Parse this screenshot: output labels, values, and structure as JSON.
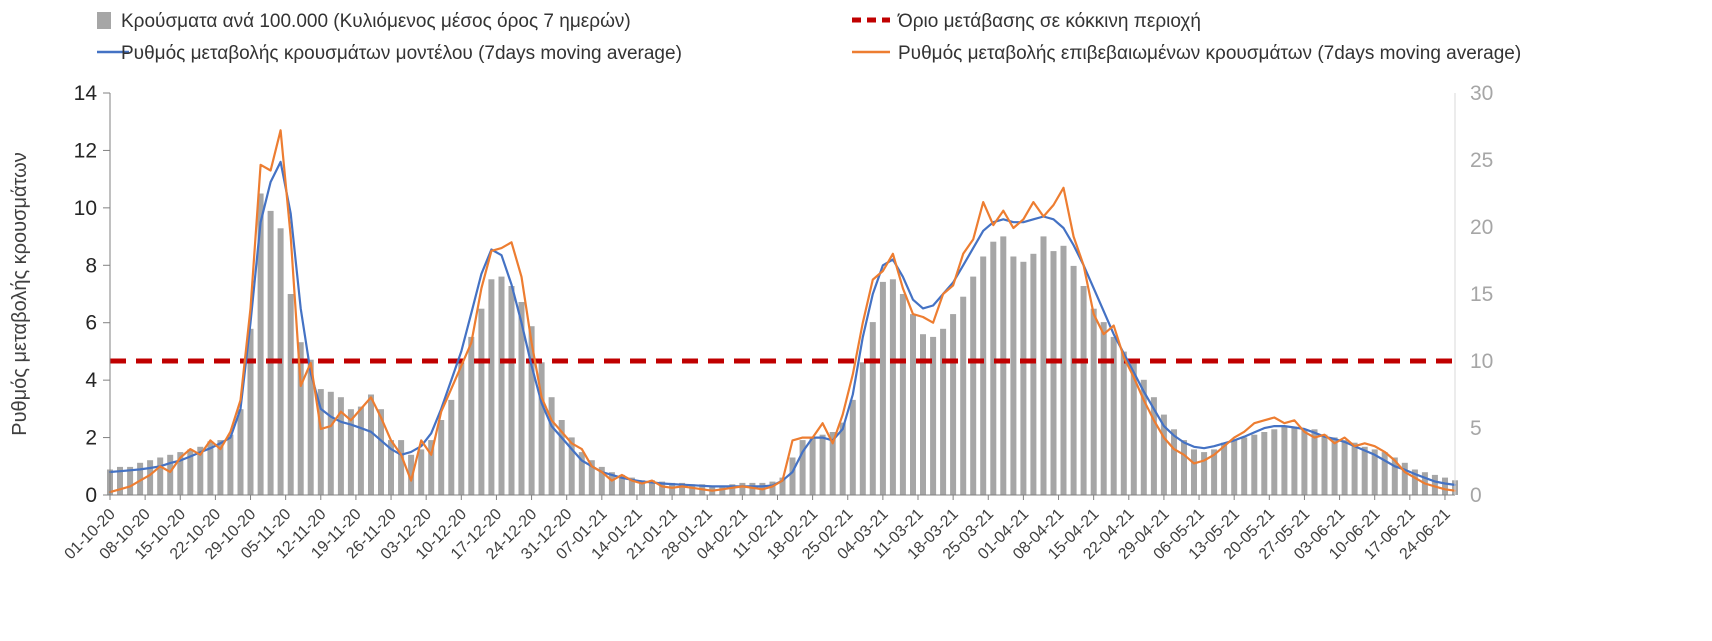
{
  "chart_data": {
    "type": "combo-bar-line",
    "x_start": "01-10-20",
    "sample_step_days": 2,
    "days_total": 268,
    "x_tick_interval_days": 7,
    "x_tick_labels": [
      "01-10-20",
      "08-10-20",
      "15-10-20",
      "22-10-20",
      "29-10-20",
      "05-11-20",
      "12-11-20",
      "19-11-20",
      "26-11-20",
      "03-12-20",
      "10-12-20",
      "17-12-20",
      "24-12-20",
      "31-12-20",
      "07-01-21",
      "14-01-21",
      "21-01-21",
      "28-01-21",
      "04-02-21",
      "11-02-21",
      "18-02-21",
      "25-02-21",
      "04-03-21",
      "11-03-21",
      "18-03-21",
      "25-03-21",
      "01-04-21",
      "08-04-21",
      "15-04-21",
      "22-04-21",
      "29-04-21",
      "06-05-21",
      "13-05-21",
      "20-05-21",
      "27-05-21",
      "03-06-21",
      "10-06-21",
      "17-06-21",
      "24-06-21"
    ],
    "left_axis": {
      "label": "Ρυθμός μεταβολής κρουσμάτων",
      "min": 0,
      "max": 14,
      "ticks": [
        0,
        2,
        4,
        6,
        8,
        10,
        12,
        14
      ]
    },
    "right_axis": {
      "min": 0,
      "max": 30,
      "ticks": [
        0,
        5,
        10,
        15,
        20,
        25,
        30
      ]
    },
    "threshold": {
      "label": "Όριο μετάβασης σε κόκκινη περιοχή",
      "value_right_axis": 10,
      "color": "#c00000"
    },
    "series": [
      {
        "name": "Κρούσματα ανά 100.000 (Κυλιόμενος μέσος όρος 7 ημερών)",
        "type": "bar",
        "axis": "right",
        "color": "#a6a6a6",
        "values": [
          1.9,
          2.1,
          2.1,
          2.4,
          2.6,
          2.8,
          3.0,
          3.2,
          3.4,
          3.6,
          4.0,
          4.1,
          4.5,
          6.4,
          12.4,
          22.5,
          21.2,
          19.9,
          15.0,
          11.4,
          10.1,
          7.9,
          7.7,
          7.3,
          6.4,
          6.6,
          7.5,
          6.4,
          4.1,
          4.1,
          3.0,
          3.4,
          4.1,
          5.6,
          7.1,
          9.9,
          11.8,
          13.9,
          16.1,
          16.3,
          15.6,
          14.4,
          12.6,
          9.9,
          7.3,
          5.6,
          4.3,
          3.2,
          2.6,
          2.1,
          1.7,
          1.5,
          1.3,
          1.1,
          1.1,
          1.0,
          0.9,
          0.9,
          0.8,
          0.8,
          0.6,
          0.6,
          0.8,
          0.9,
          0.9,
          0.9,
          1.0,
          1.3,
          2.8,
          4.1,
          4.3,
          4.5,
          4.7,
          5.4,
          7.1,
          9.9,
          12.9,
          15.9,
          16.1,
          15.0,
          13.5,
          12.0,
          11.8,
          12.4,
          13.5,
          14.8,
          16.3,
          17.8,
          18.9,
          19.3,
          17.8,
          17.4,
          18.0,
          19.3,
          18.2,
          18.6,
          17.1,
          15.6,
          13.9,
          12.9,
          11.8,
          10.7,
          9.9,
          8.6,
          7.3,
          6.0,
          4.9,
          4.1,
          3.4,
          3.2,
          3.4,
          3.9,
          4.1,
          4.3,
          4.5,
          4.7,
          4.9,
          5.1,
          5.1,
          4.9,
          4.9,
          4.5,
          4.3,
          4.1,
          3.9,
          3.6,
          3.4,
          3.2,
          2.8,
          2.4,
          1.9,
          1.7,
          1.5,
          1.3,
          1.1
        ]
      },
      {
        "name": "Ρυθμός μεταβολής κρουσμάτων μοντέλου (7days moving average)",
        "type": "line",
        "axis": "left",
        "color": "#4472c4",
        "values": [
          0.8,
          0.83,
          0.86,
          0.89,
          0.94,
          1.0,
          1.11,
          1.2,
          1.34,
          1.49,
          1.63,
          1.8,
          2.0,
          3.0,
          6.0,
          9.5,
          10.9,
          11.6,
          9.8,
          6.5,
          4.25,
          3.0,
          2.73,
          2.55,
          2.45,
          2.33,
          2.2,
          1.9,
          1.6,
          1.4,
          1.5,
          1.7,
          2.15,
          3.0,
          4.0,
          5.0,
          6.33,
          7.7,
          8.55,
          8.35,
          7.33,
          6.0,
          4.5,
          3.2,
          2.4,
          2.0,
          1.6,
          1.2,
          1.0,
          0.8,
          0.7,
          0.6,
          0.53,
          0.47,
          0.44,
          0.4,
          0.38,
          0.36,
          0.34,
          0.32,
          0.3,
          0.3,
          0.3,
          0.3,
          0.3,
          0.3,
          0.33,
          0.5,
          0.8,
          1.5,
          2.0,
          2.0,
          1.9,
          2.3,
          3.5,
          5.5,
          7.0,
          8.0,
          8.2,
          7.6,
          6.8,
          6.5,
          6.6,
          7.0,
          7.4,
          8.0,
          8.6,
          9.2,
          9.5,
          9.6,
          9.5,
          9.5,
          9.6,
          9.7,
          9.6,
          9.3,
          8.7,
          8.0,
          7.2,
          6.4,
          5.6,
          4.93,
          4.27,
          3.6,
          3.0,
          2.4,
          2.07,
          1.83,
          1.68,
          1.63,
          1.7,
          1.8,
          1.9,
          2.03,
          2.18,
          2.33,
          2.4,
          2.4,
          2.35,
          2.3,
          2.17,
          2.03,
          1.95,
          1.85,
          1.7,
          1.55,
          1.4,
          1.2,
          1.0,
          0.88,
          0.73,
          0.6,
          0.47,
          0.4,
          0.35
        ]
      },
      {
        "name": "Ρυθμός μεταβολής επιβεβαιωμένων κρουσμάτων (7days moving average)",
        "type": "line",
        "axis": "left",
        "color": "#ed7d31",
        "values": [
          0.1,
          0.2,
          0.3,
          0.5,
          0.7,
          1.0,
          0.8,
          1.3,
          1.6,
          1.4,
          1.9,
          1.6,
          2.2,
          3.3,
          6.5,
          11.5,
          11.3,
          12.7,
          9.0,
          3.8,
          4.6,
          2.3,
          2.4,
          2.9,
          2.6,
          3.0,
          3.4,
          2.7,
          1.9,
          1.4,
          0.5,
          1.9,
          1.4,
          2.9,
          3.7,
          4.5,
          5.3,
          7.2,
          8.5,
          8.6,
          8.8,
          7.6,
          5.3,
          3.4,
          2.6,
          2.2,
          1.8,
          1.6,
          1.0,
          0.8,
          0.5,
          0.7,
          0.5,
          0.4,
          0.5,
          0.3,
          0.25,
          0.3,
          0.25,
          0.2,
          0.15,
          0.2,
          0.25,
          0.3,
          0.25,
          0.2,
          0.3,
          0.5,
          1.9,
          2.0,
          2.0,
          2.5,
          1.8,
          2.8,
          4.2,
          6.0,
          7.5,
          7.8,
          8.4,
          7.2,
          6.3,
          6.2,
          6.0,
          7.0,
          7.3,
          8.4,
          8.9,
          10.2,
          9.4,
          9.9,
          9.3,
          9.6,
          10.2,
          9.7,
          10.1,
          10.7,
          9.0,
          8.0,
          6.3,
          5.6,
          5.9,
          4.8,
          4.1,
          3.3,
          2.6,
          2.0,
          1.6,
          1.4,
          1.1,
          1.2,
          1.4,
          1.7,
          2.0,
          2.2,
          2.5,
          2.6,
          2.7,
          2.5,
          2.6,
          2.2,
          2.0,
          2.1,
          1.8,
          2.0,
          1.7,
          1.8,
          1.7,
          1.5,
          1.2,
          0.8,
          0.6,
          0.4,
          0.3,
          0.2,
          0.15
        ]
      }
    ]
  }
}
